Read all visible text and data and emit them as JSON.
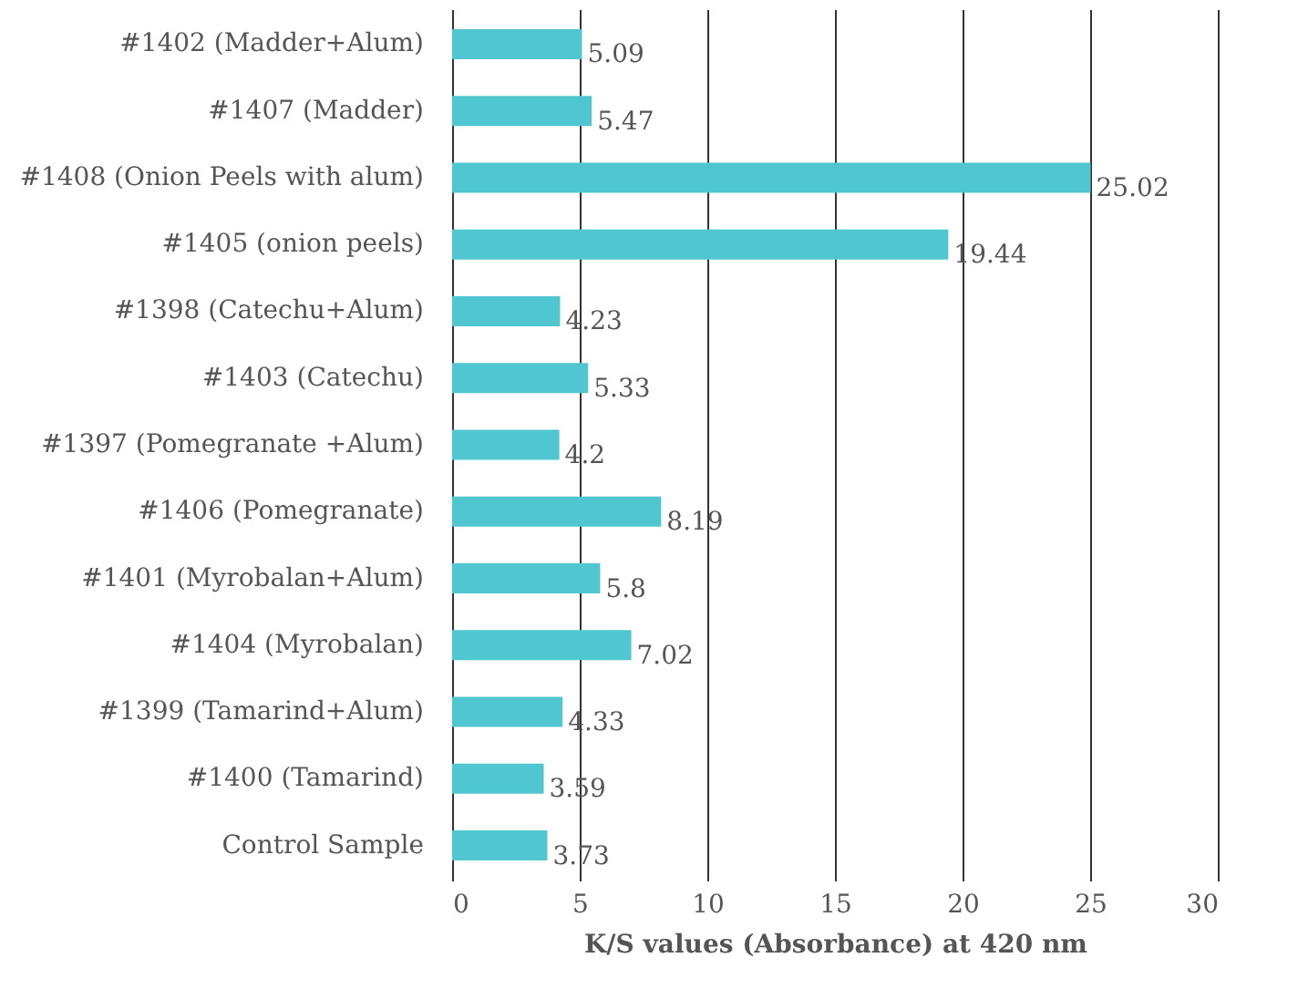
{
  "chart_data": {
    "type": "bar",
    "orientation": "horizontal",
    "xlabel": "K/S values (Absorbance) at 420 nm",
    "categories": [
      "#1402 (Madder+Alum)",
      "#1407 (Madder)",
      "#1408 (Onion Peels with alum)",
      "#1405 (onion peels)",
      "#1398 (Catechu+Alum)",
      "#1403 (Catechu)",
      "#1397 (Pomegranate +Alum)",
      "#1406 (Pomegranate)",
      "#1401 (Myrobalan+Alum)",
      "#1404 (Myrobalan)",
      "#1399 (Tamarind+Alum)",
      "#1400 (Tamarind)",
      "Control Sample"
    ],
    "values": [
      5.09,
      5.47,
      25.02,
      19.44,
      4.23,
      5.33,
      4.2,
      8.19,
      5.8,
      7.02,
      4.33,
      3.59,
      3.73
    ],
    "color": "#4fc6d0",
    "xlim": [
      0,
      30
    ],
    "xticks": [
      0,
      5,
      10,
      15,
      20,
      25,
      30
    ],
    "grid": "x",
    "data_labels": true
  }
}
